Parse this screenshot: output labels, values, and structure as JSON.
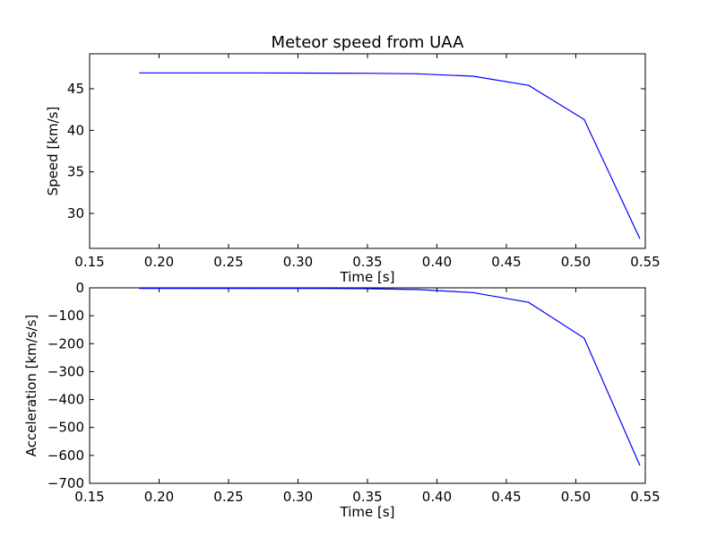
{
  "figure": {
    "title": "Meteor speed from  UAA"
  },
  "chart_data": [
    {
      "type": "line",
      "title": "Meteor speed from  UAA",
      "xlabel": "Time [s]",
      "ylabel": "Speed [km/s]",
      "xlim": [
        0.15,
        0.55
      ],
      "ylim": [
        25.8,
        49.2
      ],
      "xticks": [
        "0.15",
        "0.20",
        "0.25",
        "0.30",
        "0.35",
        "0.40",
        "0.45",
        "0.50",
        "0.55"
      ],
      "yticks": [
        "30",
        "35",
        "40",
        "45"
      ],
      "line_color": "#0000ff",
      "series": [
        {
          "x": [
            0.186,
            0.226,
            0.266,
            0.306,
            0.346,
            0.386,
            0.426,
            0.466,
            0.506,
            0.546
          ],
          "y": [
            46.9,
            46.9,
            46.9,
            46.88,
            46.86,
            46.8,
            46.5,
            45.4,
            41.3,
            27.0
          ]
        }
      ]
    },
    {
      "type": "line",
      "title": "",
      "xlabel": "Time [s]",
      "ylabel": "Acceleration [km/s/s]",
      "xlim": [
        0.15,
        0.55
      ],
      "ylim": [
        -700,
        0
      ],
      "xticks": [
        "0.15",
        "0.20",
        "0.25",
        "0.30",
        "0.35",
        "0.40",
        "0.45",
        "0.50",
        "0.55"
      ],
      "yticks": [
        "0",
        "−100",
        "−200",
        "−300",
        "−400",
        "−500",
        "−600",
        "−700"
      ],
      "line_color": "#0000ff",
      "series": [
        {
          "x": [
            0.186,
            0.226,
            0.266,
            0.306,
            0.346,
            0.386,
            0.426,
            0.466,
            0.506,
            0.546
          ],
          "y": [
            -2,
            -2,
            -2,
            -2,
            -3,
            -6,
            -17,
            -52,
            -180,
            -635
          ]
        }
      ]
    }
  ]
}
